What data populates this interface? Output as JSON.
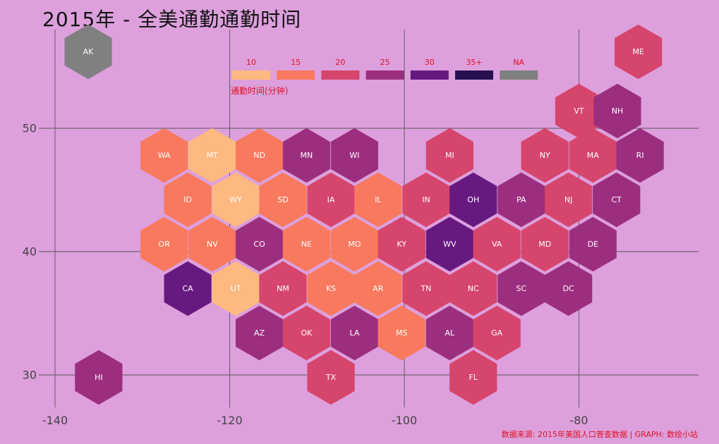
{
  "title": "2015年 - 全美通勤通勤时间",
  "caption": "数据来源: 2015年美国人口普查数据 | GRAPH: 数绘小站",
  "legend": {
    "title": "通勤时间(分钟)",
    "items": [
      {
        "label": "10",
        "color": "#FDB97F"
      },
      {
        "label": "15",
        "color": "#F8795E"
      },
      {
        "label": "20",
        "color": "#D6456C"
      },
      {
        "label": "25",
        "color": "#9C2E7F"
      },
      {
        "label": "30",
        "color": "#661A80"
      },
      {
        "label": "35+",
        "color": "#261051"
      },
      {
        "label": "NA",
        "color": "#808080"
      }
    ]
  },
  "chart_data": {
    "type": "hex-tile-map",
    "x_ticks": [
      "-140",
      "-120",
      "-100",
      "-80"
    ],
    "y_ticks": [
      "50",
      "40",
      "30"
    ],
    "states": [
      {
        "abbr": "AK",
        "x": -136.2,
        "y": 56.2,
        "bin": "NA"
      },
      {
        "abbr": "ME",
        "x": -73.2,
        "y": 56.2,
        "bin": "20"
      },
      {
        "abbr": "VT",
        "x": -80.0,
        "y": 51.4,
        "bin": "20"
      },
      {
        "abbr": "NH",
        "x": -75.6,
        "y": 51.4,
        "bin": "25"
      },
      {
        "abbr": "WA",
        "x": -127.5,
        "y": 47.8,
        "bin": "15"
      },
      {
        "abbr": "MT",
        "x": -122.0,
        "y": 47.8,
        "bin": "10"
      },
      {
        "abbr": "ND",
        "x": -116.6,
        "y": 47.8,
        "bin": "15"
      },
      {
        "abbr": "MN",
        "x": -111.2,
        "y": 47.8,
        "bin": "25"
      },
      {
        "abbr": "WI",
        "x": -105.7,
        "y": 47.8,
        "bin": "25"
      },
      {
        "abbr": "MI",
        "x": -94.8,
        "y": 47.8,
        "bin": "20"
      },
      {
        "abbr": "NY",
        "x": -83.9,
        "y": 47.8,
        "bin": "20"
      },
      {
        "abbr": "MA",
        "x": -78.4,
        "y": 47.8,
        "bin": "20"
      },
      {
        "abbr": "RI",
        "x": -73.0,
        "y": 47.8,
        "bin": "25"
      },
      {
        "abbr": "ID",
        "x": -124.8,
        "y": 44.2,
        "bin": "15"
      },
      {
        "abbr": "WY",
        "x": -119.3,
        "y": 44.2,
        "bin": "10"
      },
      {
        "abbr": "SD",
        "x": -113.9,
        "y": 44.2,
        "bin": "15"
      },
      {
        "abbr": "IA",
        "x": -108.4,
        "y": 44.2,
        "bin": "20"
      },
      {
        "abbr": "IL",
        "x": -103.0,
        "y": 44.2,
        "bin": "15"
      },
      {
        "abbr": "IN",
        "x": -97.5,
        "y": 44.2,
        "bin": "20"
      },
      {
        "abbr": "OH",
        "x": -92.1,
        "y": 44.2,
        "bin": "30"
      },
      {
        "abbr": "PA",
        "x": -86.6,
        "y": 44.2,
        "bin": "25"
      },
      {
        "abbr": "NJ",
        "x": -81.2,
        "y": 44.2,
        "bin": "20"
      },
      {
        "abbr": "CT",
        "x": -75.7,
        "y": 44.2,
        "bin": "25"
      },
      {
        "abbr": "OR",
        "x": -127.5,
        "y": 40.6,
        "bin": "15"
      },
      {
        "abbr": "NV",
        "x": -122.0,
        "y": 40.6,
        "bin": "15"
      },
      {
        "abbr": "CO",
        "x": -116.6,
        "y": 40.6,
        "bin": "25"
      },
      {
        "abbr": "NE",
        "x": -111.2,
        "y": 40.6,
        "bin": "15"
      },
      {
        "abbr": "MO",
        "x": -105.7,
        "y": 40.6,
        "bin": "15"
      },
      {
        "abbr": "KY",
        "x": -100.3,
        "y": 40.6,
        "bin": "20"
      },
      {
        "abbr": "WV",
        "x": -94.8,
        "y": 40.6,
        "bin": "30"
      },
      {
        "abbr": "VA",
        "x": -89.4,
        "y": 40.6,
        "bin": "20"
      },
      {
        "abbr": "MD",
        "x": -83.9,
        "y": 40.6,
        "bin": "20"
      },
      {
        "abbr": "DE",
        "x": -78.4,
        "y": 40.6,
        "bin": "25"
      },
      {
        "abbr": "CA",
        "x": -124.8,
        "y": 37.0,
        "bin": "30"
      },
      {
        "abbr": "UT",
        "x": -119.3,
        "y": 37.0,
        "bin": "10"
      },
      {
        "abbr": "NM",
        "x": -113.9,
        "y": 37.0,
        "bin": "20"
      },
      {
        "abbr": "KS",
        "x": -108.4,
        "y": 37.0,
        "bin": "15"
      },
      {
        "abbr": "AR",
        "x": -103.0,
        "y": 37.0,
        "bin": "15"
      },
      {
        "abbr": "TN",
        "x": -97.5,
        "y": 37.0,
        "bin": "20"
      },
      {
        "abbr": "NC",
        "x": -92.1,
        "y": 37.0,
        "bin": "20"
      },
      {
        "abbr": "SC",
        "x": -86.6,
        "y": 37.0,
        "bin": "25"
      },
      {
        "abbr": "DC",
        "x": -81.2,
        "y": 37.0,
        "bin": "25"
      },
      {
        "abbr": "AZ",
        "x": -116.6,
        "y": 33.4,
        "bin": "25"
      },
      {
        "abbr": "OK",
        "x": -111.2,
        "y": 33.4,
        "bin": "20"
      },
      {
        "abbr": "LA",
        "x": -105.7,
        "y": 33.4,
        "bin": "25"
      },
      {
        "abbr": "MS",
        "x": -100.3,
        "y": 33.4,
        "bin": "15"
      },
      {
        "abbr": "AL",
        "x": -94.8,
        "y": 33.4,
        "bin": "25"
      },
      {
        "abbr": "GA",
        "x": -89.4,
        "y": 33.4,
        "bin": "20"
      },
      {
        "abbr": "HI",
        "x": -135.0,
        "y": 29.8,
        "bin": "25"
      },
      {
        "abbr": "TX",
        "x": -108.4,
        "y": 29.8,
        "bin": "20"
      },
      {
        "abbr": "FL",
        "x": -92.1,
        "y": 29.8,
        "bin": "20"
      }
    ]
  }
}
